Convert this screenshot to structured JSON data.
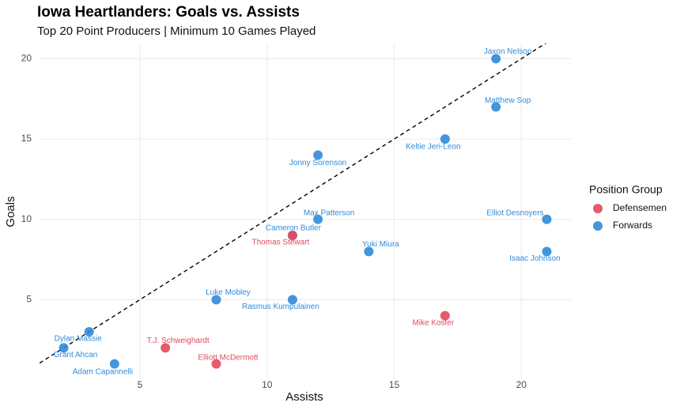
{
  "chart_data": {
    "type": "scatter",
    "title": "Iowa Heartlanders: Goals vs. Assists",
    "subtitle": "Top 20 Point Producers | Minimum 10 Games Played",
    "x_label": "Assists",
    "y_label": "Goals",
    "xlim": [
      1.05,
      21.95
    ],
    "ylim": [
      0.05,
      20.95
    ],
    "xticks": [
      5,
      10,
      15,
      20
    ],
    "yticks": [
      5,
      10,
      15,
      20
    ],
    "grid": true,
    "reference_line": {
      "slope": 1,
      "intercept": 0
    },
    "legend": {
      "title": "Position Group",
      "position": "right"
    },
    "series": [
      {
        "name": "Defensemen",
        "color": "#e2495b",
        "x": [
          17,
          6,
          8,
          11
        ],
        "values": [
          4,
          2,
          1,
          9
        ],
        "point_labels": [
          "Mike Koster",
          "T.J. Schweighardt",
          "Elliott McDermott",
          "Thomas Stewart"
        ]
      },
      {
        "name": "Forwards",
        "color": "#2f8bd8",
        "x": [
          19,
          19,
          17,
          12,
          12,
          11,
          14,
          21,
          21,
          8,
          11,
          3,
          2,
          4
        ],
        "values": [
          20,
          17,
          15,
          14,
          10,
          9,
          8,
          10,
          8,
          5,
          5,
          3,
          2,
          1
        ],
        "point_labels": [
          "Jaxon Nelson",
          "Matthew Sop",
          "Keltie Jeri-Leon",
          "Jonny Sorenson",
          "Max Patterson",
          "Cameron Butler",
          "Yuki Miura",
          "Elliot Desnoyers",
          "Isaac Johnson",
          "Luke Mobley",
          "Rasmus Kumpulainen",
          "Dylan Massie",
          "Grant Ahcan",
          "Adam Capannelli"
        ]
      }
    ]
  }
}
